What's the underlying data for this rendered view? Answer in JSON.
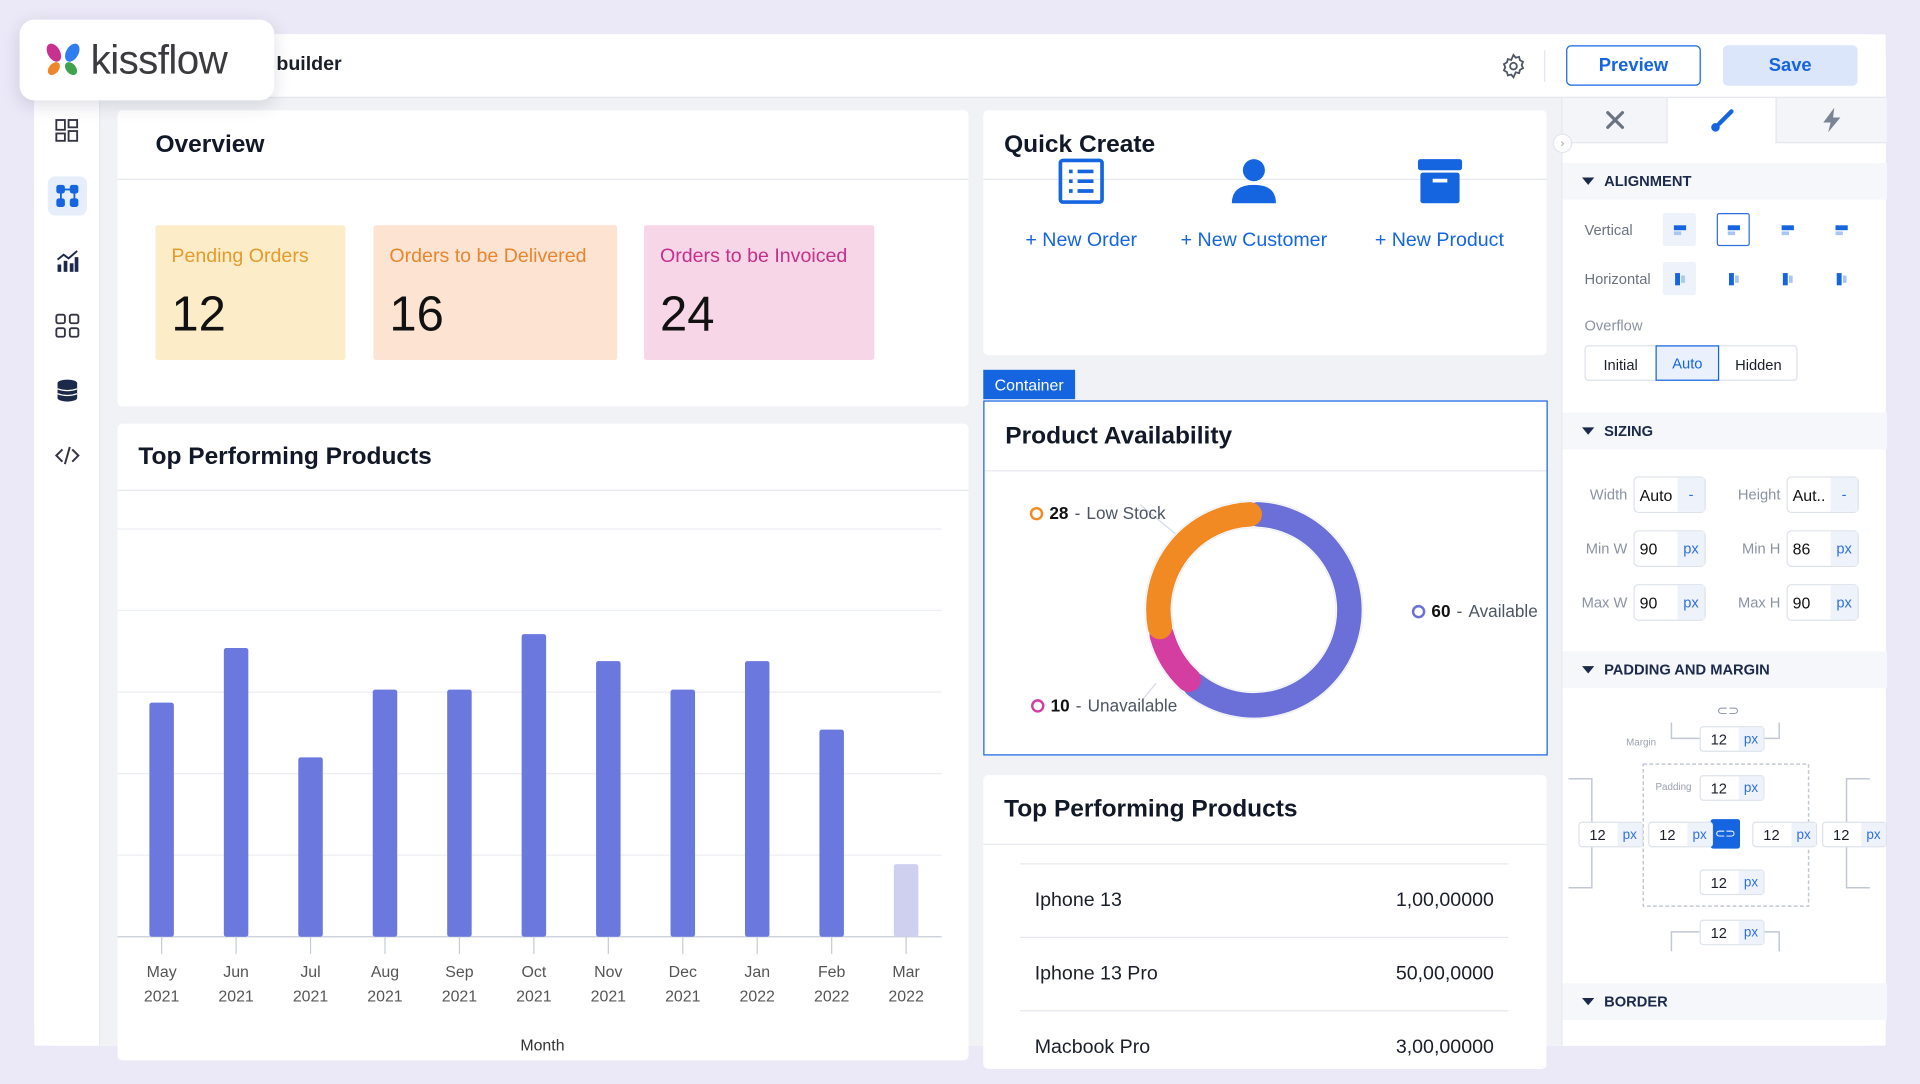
{
  "app": {
    "logo_text": "kissflow",
    "page_title": "Page builder"
  },
  "header": {
    "preview_label": "Preview",
    "save_label": "Save",
    "settings_icon": "gear-icon"
  },
  "sidebar": {
    "items": [
      {
        "icon": "layout-icon"
      },
      {
        "icon": "components-icon",
        "active": true
      },
      {
        "icon": "analytics-icon"
      },
      {
        "icon": "apps-grid-icon"
      },
      {
        "icon": "database-icon"
      },
      {
        "icon": "code-icon"
      }
    ]
  },
  "overview": {
    "title": "Overview",
    "stats": [
      {
        "label": "Pending Orders",
        "value": "12",
        "bg": "#fdecc8",
        "color": "#e49b2b"
      },
      {
        "label": "Orders to be Delivered",
        "value": "16",
        "bg": "#fde3d2",
        "color": "#e8862e"
      },
      {
        "label": "Orders to be Invoiced",
        "value": "24",
        "bg": "#f7d6e8",
        "color": "#c4308a"
      }
    ]
  },
  "quick_create": {
    "title": "Quick Create",
    "items": [
      {
        "label": "+ New Order",
        "icon": "list-icon"
      },
      {
        "label": "+ New Customer",
        "icon": "user-icon"
      },
      {
        "label": "+ New Product",
        "icon": "archive-box-icon"
      }
    ]
  },
  "container_tag": "Container",
  "availability": {
    "title": "Product Availability"
  },
  "top_chart": {
    "title": "Top Performing Products"
  },
  "top_table": {
    "title": "Top Performing Products",
    "rows": [
      {
        "name": "Iphone 13",
        "value": "1,00,00000"
      },
      {
        "name": "Iphone 13 Pro",
        "value": "50,00,0000"
      },
      {
        "name": "Macbook Pro",
        "value": "3,00,00000"
      }
    ]
  },
  "chart_data": [
    {
      "type": "bar",
      "title": "Top Performing Products",
      "xlabel": "Month",
      "ylabel": "",
      "categories": [
        [
          "May",
          "2021"
        ],
        [
          "Jun",
          "2021"
        ],
        [
          "Jul",
          "2021"
        ],
        [
          "Aug",
          "2021"
        ],
        [
          "Sep",
          "2021"
        ],
        [
          "Oct",
          "2021"
        ],
        [
          "Nov",
          "2021"
        ],
        [
          "Dec",
          "2021"
        ],
        [
          "Jan",
          "2022"
        ],
        [
          "Feb",
          "2022"
        ],
        [
          "Mar",
          "2022"
        ]
      ],
      "values": [
        2.87,
        3.54,
        2.2,
        3.03,
        3.03,
        3.71,
        3.38,
        3.03,
        3.38,
        2.54,
        0.89
      ],
      "ylim": [
        0,
        5
      ],
      "grid": true,
      "bar_color": "#6b78de",
      "last_bar_color": "#cfd0f0"
    },
    {
      "type": "pie",
      "title": "Product Availability",
      "donut": true,
      "slices": [
        {
          "name": "Available",
          "value": 60,
          "color": "#6b6fd8"
        },
        {
          "name": "Unavailable",
          "value": 10,
          "color": "#d33ea0"
        },
        {
          "name": "Low Stock",
          "value": 28,
          "color": "#f28a24"
        }
      ]
    }
  ],
  "panel": {
    "tabs": [
      {
        "icon": "tools-icon"
      },
      {
        "icon": "paint-brush-icon",
        "active": true
      },
      {
        "icon": "lightning-icon"
      }
    ],
    "alignment": {
      "title": "ALIGNMENT",
      "vertical_label": "Vertical",
      "horizontal_label": "Horizontal",
      "overflow_label": "Overflow",
      "overflow_options": [
        "Initial",
        "Auto",
        "Hidden"
      ],
      "overflow_selected": "Auto"
    },
    "sizing": {
      "title": "SIZING",
      "width_label": "Width",
      "width": "Auto",
      "height_label": "Height",
      "height": "Aut..",
      "dash": "-",
      "min_w_label": "Min W",
      "min_w": "90",
      "min_h_label": "Min H",
      "min_h": "86",
      "max_w_label": "Max W",
      "max_w": "90",
      "max_h_label": "Max H",
      "max_h": "90",
      "unit": "px"
    },
    "spacing": {
      "title": "PADDING AND MARGIN",
      "margin_label": "Margin",
      "padding_label": "Padding",
      "margin": {
        "top": "12",
        "left": "12",
        "right": "12",
        "bottom": "12"
      },
      "padding": {
        "top": "12",
        "left": "12",
        "right": "12",
        "bottom": "12"
      },
      "unit": "px"
    },
    "border": {
      "title": "BORDER"
    }
  }
}
